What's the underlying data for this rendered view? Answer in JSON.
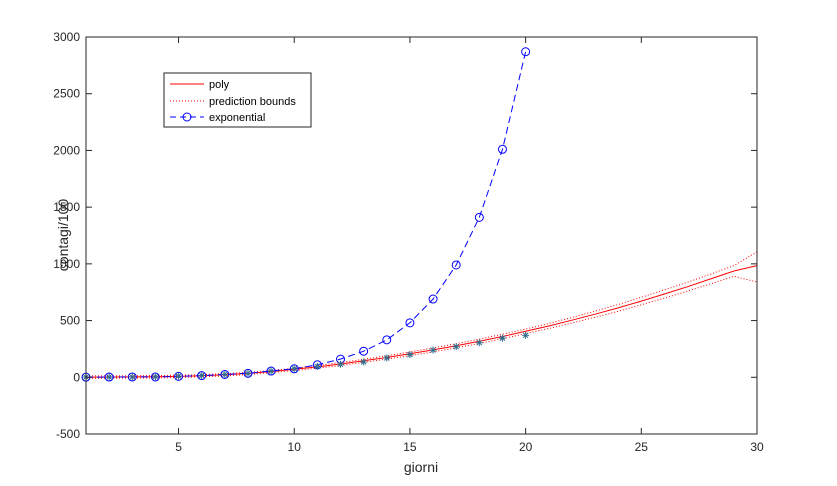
{
  "chart_data": {
    "type": "line",
    "xlabel": "giorni",
    "ylabel": "contagi/100",
    "xlim": [
      1,
      30
    ],
    "ylim": [
      -500,
      3000
    ],
    "xticks": [
      5,
      10,
      15,
      20,
      25,
      30
    ],
    "yticks": [
      -500,
      0,
      500,
      1000,
      1500,
      2000,
      2500,
      3000
    ],
    "xtick_labels": [
      "5",
      "10",
      "15",
      "20",
      "25",
      "30"
    ],
    "ytick_labels": [
      "-500",
      "0",
      "500",
      "1000",
      "1500",
      "2000",
      "2500",
      "3000"
    ],
    "grid": false,
    "legend_position": "top-left",
    "legend": [
      "poly",
      "prediction bounds",
      "exponential"
    ],
    "data_x": [
      1,
      2,
      3,
      4,
      5,
      6,
      7,
      8,
      9,
      10,
      11,
      12,
      13,
      14,
      15,
      16,
      17,
      18,
      19,
      20
    ],
    "data_y": [
      2,
      3,
      3,
      5,
      10,
      16,
      25,
      35,
      55,
      75,
      95,
      115,
      135,
      170,
      200,
      240,
      270,
      305,
      345,
      370
    ],
    "series": [
      {
        "name": "poly",
        "color": "#ff0000",
        "style": "solid",
        "x": [
          1,
          2,
          3,
          4,
          5,
          6,
          7,
          8,
          9,
          10,
          11,
          12,
          13,
          14,
          15,
          16,
          17,
          18,
          19,
          20,
          21,
          22,
          23,
          24,
          25,
          26,
          27,
          28,
          29,
          30
        ],
        "y": [
          2,
          2,
          3,
          5,
          8,
          14,
          22,
          34,
          50,
          70,
          92,
          117,
          145,
          175,
          207,
          241,
          278,
          318,
          360,
          405,
          452,
          503,
          556,
          612,
          672,
          734,
          799,
          867,
          937,
          985
        ]
      },
      {
        "name": "prediction bounds",
        "color": "#ff0000",
        "style": "dotted",
        "upper": {
          "x": [
            1,
            2,
            3,
            4,
            5,
            6,
            7,
            8,
            9,
            10,
            11,
            12,
            13,
            14,
            15,
            16,
            17,
            18,
            19,
            20,
            21,
            22,
            23,
            24,
            25,
            26,
            27,
            28,
            29,
            30
          ],
          "y": [
            12,
            12,
            13,
            15,
            18,
            24,
            32,
            44,
            60,
            80,
            104,
            130,
            159,
            190,
            223,
            258,
            296,
            337,
            380,
            425,
            474,
            527,
            583,
            642,
            705,
            770,
            838,
            910,
            985,
            1105
          ]
        },
        "lower": {
          "x": [
            1,
            2,
            3,
            4,
            5,
            6,
            7,
            8,
            9,
            10,
            11,
            12,
            13,
            14,
            15,
            16,
            17,
            18,
            19,
            20,
            21,
            22,
            23,
            24,
            25,
            26,
            27,
            28,
            29,
            30
          ],
          "y": [
            -8,
            -8,
            -7,
            -5,
            -2,
            4,
            12,
            24,
            40,
            60,
            80,
            104,
            131,
            160,
            191,
            224,
            260,
            299,
            340,
            385,
            430,
            479,
            529,
            582,
            639,
            698,
            760,
            824,
            890,
            840
          ]
        }
      },
      {
        "name": "exponential",
        "color": "#0000ff",
        "style": "dashed",
        "marker": "circle",
        "x": [
          1,
          2,
          3,
          4,
          5,
          6,
          7,
          8,
          9,
          10,
          11,
          12,
          13,
          14,
          15,
          16,
          17,
          18,
          19,
          20
        ],
        "y": [
          1,
          2,
          3,
          3,
          8,
          15,
          25,
          35,
          55,
          75,
          110,
          160,
          230,
          330,
          480,
          690,
          990,
          1410,
          2010,
          2870
        ]
      }
    ]
  }
}
